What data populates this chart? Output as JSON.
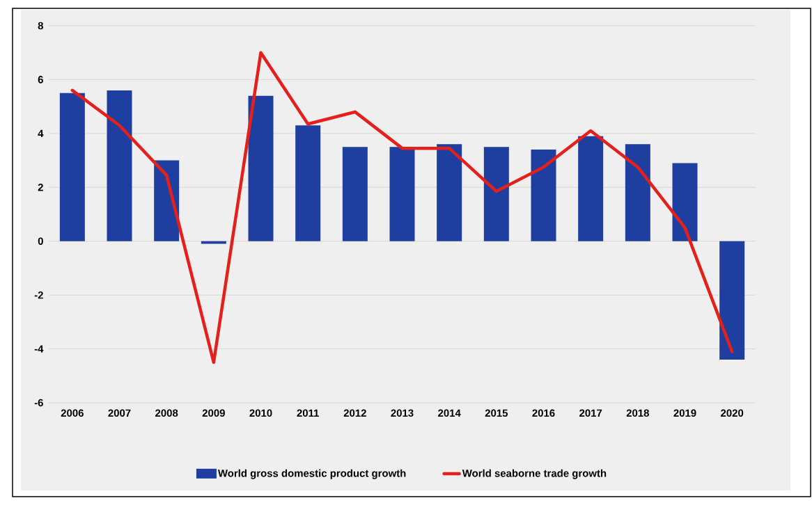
{
  "chart_data": {
    "type": "bar",
    "categories": [
      "2006",
      "2007",
      "2008",
      "2009",
      "2010",
      "2011",
      "2012",
      "2013",
      "2014",
      "2015",
      "2016",
      "2017",
      "2018",
      "2019",
      "2020"
    ],
    "series": [
      {
        "name": "World gross domestic product growth",
        "color": "#1f3fa0",
        "values": [
          5.5,
          5.6,
          3.0,
          -0.1,
          5.4,
          4.3,
          3.5,
          3.5,
          3.6,
          3.5,
          3.4,
          3.9,
          3.6,
          2.9,
          -4.4
        ]
      },
      {
        "name": "World seaborne trade growth",
        "type": "line",
        "color": "#e3201b",
        "values": [
          5.6,
          4.3,
          2.45,
          -4.5,
          7.0,
          4.35,
          4.8,
          3.45,
          3.45,
          1.85,
          2.75,
          4.1,
          2.75,
          0.5,
          -4.1
        ]
      }
    ],
    "ylim": [
      -6,
      8
    ],
    "yticks": [
      -6,
      -4,
      -2,
      0,
      2,
      4,
      6,
      8
    ],
    "grid": "y",
    "legend": "bottom"
  }
}
